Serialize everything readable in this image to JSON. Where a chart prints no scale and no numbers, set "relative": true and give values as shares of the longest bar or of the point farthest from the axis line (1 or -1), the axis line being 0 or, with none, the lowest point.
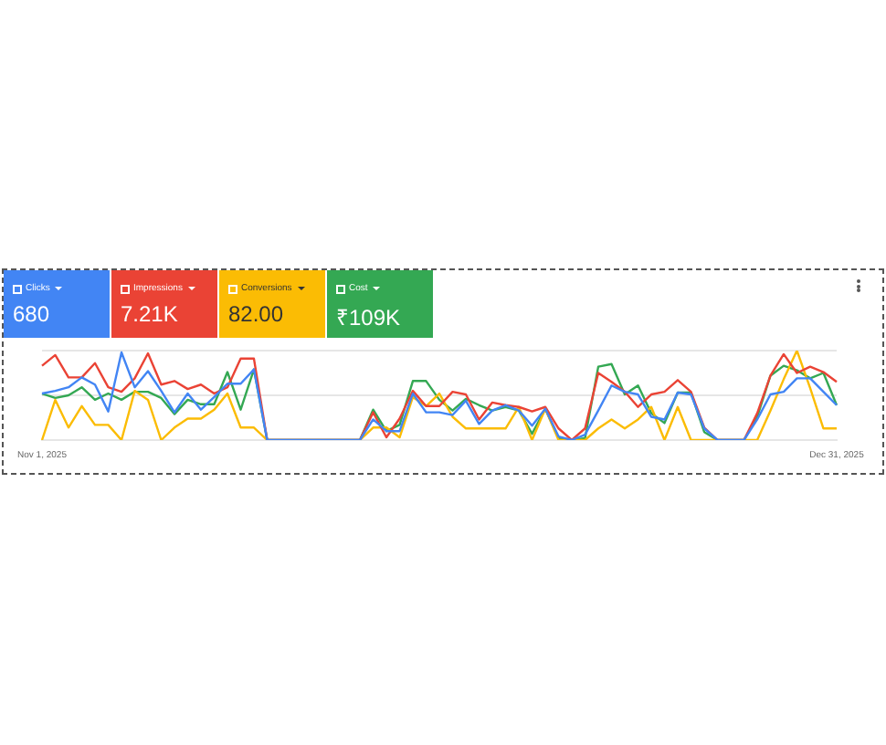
{
  "chart_data": {
    "type": "line",
    "relative": true,
    "ref_lines": [
      {
        "axis": "y",
        "value": 0.5,
        "color": "#e6e6e6"
      },
      {
        "axis": "y",
        "value": 1,
        "color": "#e6e6e6"
      }
    ],
    "legend": "top left",
    "marker": "none",
    "line_style": "solid",
    "categories": [
      "Nov 1, 2025",
      null,
      null,
      null,
      null,
      null,
      null,
      null,
      null,
      null,
      null,
      null,
      null,
      null,
      null,
      null,
      null,
      null,
      null,
      null,
      null,
      null,
      null,
      null,
      null,
      null,
      null,
      null,
      null,
      null,
      null,
      null,
      null,
      null,
      null,
      null,
      null,
      null,
      null,
      null,
      null,
      null,
      null,
      null,
      null,
      null,
      null,
      null,
      null,
      null,
      null,
      null,
      null,
      null,
      null,
      null,
      null,
      null,
      null,
      null,
      "Dec 31, 2025"
    ],
    "annotations": [
      "680",
      "7.21K",
      "82.00",
      "₹109K"
    ],
    "series": [
      {
        "name": "Clicks",
        "color": "#4285f4",
        "values": [
          0.52,
          0.55,
          0.59,
          0.7,
          0.62,
          0.32,
          0.98,
          0.59,
          0.77,
          0.55,
          0.31,
          0.52,
          0.34,
          0.48,
          0.63,
          0.63,
          0.79,
          0,
          0,
          0,
          0,
          0,
          0,
          0,
          0,
          0.23,
          0.1,
          0.1,
          0.52,
          0.31,
          0.31,
          0.28,
          0.44,
          0.18,
          0.33,
          0.39,
          0.33,
          0.16,
          0.35,
          0.04,
          0,
          0.06,
          0.33,
          0.61,
          0.54,
          0.51,
          0.26,
          0.23,
          0.53,
          0.51,
          0.13,
          0,
          0,
          0,
          0.23,
          0.51,
          0.54,
          0.69,
          0.69,
          0.54,
          0.39
        ]
      },
      {
        "name": "Impressions",
        "color": "#ea4335",
        "values": [
          0.83,
          0.95,
          0.7,
          0.7,
          0.86,
          0.59,
          0.54,
          0.69,
          0.97,
          0.62,
          0.66,
          0.57,
          0.62,
          0.52,
          0.59,
          0.91,
          0.91,
          0,
          0,
          0,
          0,
          0,
          0,
          0,
          0,
          0.31,
          0.03,
          0.24,
          0.55,
          0.38,
          0.38,
          0.54,
          0.51,
          0.23,
          0.42,
          0.39,
          0.37,
          0.32,
          0.37,
          0.13,
          0,
          0.13,
          0.75,
          0.65,
          0.54,
          0.37,
          0.51,
          0.54,
          0.67,
          0.54,
          0.14,
          0,
          0,
          0,
          0.3,
          0.72,
          0.96,
          0.75,
          0.82,
          0.76,
          0.65
        ]
      },
      {
        "name": "Conversions",
        "color": "#fbbc04",
        "values": [
          0,
          0.45,
          0.14,
          0.38,
          0.17,
          0.17,
          0,
          0.55,
          0.45,
          0,
          0.14,
          0.24,
          0.24,
          0.34,
          0.52,
          0.14,
          0.14,
          0,
          0,
          0,
          0,
          0,
          0,
          0,
          0,
          0.14,
          0.14,
          0.03,
          0.48,
          0.38,
          0.52,
          0.26,
          0.13,
          0.13,
          0.13,
          0.13,
          0.37,
          0,
          0.35,
          0,
          0,
          0,
          0.13,
          0.23,
          0.13,
          0.23,
          0.37,
          0,
          0.37,
          0,
          0,
          0,
          0,
          0,
          0,
          0.33,
          0.68,
          1.0,
          0.58,
          0.13,
          0.13
        ]
      },
      {
        "name": "Cost",
        "color": "#34a853",
        "values": [
          0.52,
          0.47,
          0.5,
          0.59,
          0.45,
          0.52,
          0.45,
          0.54,
          0.54,
          0.47,
          0.29,
          0.45,
          0.4,
          0.4,
          0.76,
          0.34,
          0.79,
          0,
          0,
          0,
          0,
          0,
          0,
          0,
          0,
          0.34,
          0.1,
          0.17,
          0.66,
          0.66,
          0.45,
          0.33,
          0.46,
          0.39,
          0.33,
          0.37,
          0.33,
          0.07,
          0.35,
          0.02,
          0,
          0.02,
          0.82,
          0.85,
          0.51,
          0.61,
          0.3,
          0.19,
          0.53,
          0.53,
          0.09,
          0,
          0,
          0,
          0.26,
          0.72,
          0.83,
          0.78,
          0.69,
          0.75,
          0.39
        ]
      }
    ]
  }
}
